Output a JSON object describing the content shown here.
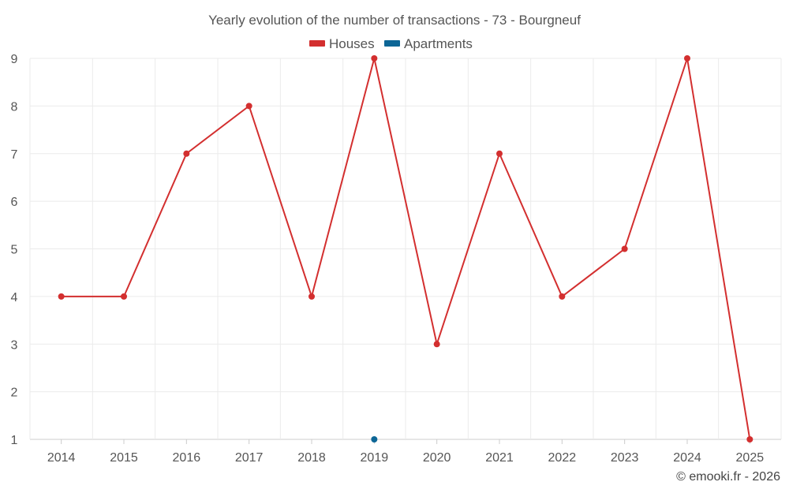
{
  "chart_data": {
    "type": "line",
    "title": "Yearly evolution of the number of transactions - 73 - Bourgneuf",
    "categories": [
      "2014",
      "2015",
      "2016",
      "2017",
      "2018",
      "2019",
      "2020",
      "2021",
      "2022",
      "2023",
      "2024",
      "2025"
    ],
    "series": [
      {
        "name": "Houses",
        "color": "#d32f2f",
        "values": [
          4,
          4,
          7,
          8,
          4,
          9,
          3,
          7,
          4,
          5,
          9,
          1
        ]
      },
      {
        "name": "Apartments",
        "color": "#0d6696",
        "values": [
          null,
          null,
          null,
          null,
          null,
          1,
          null,
          null,
          null,
          null,
          null,
          null
        ]
      }
    ],
    "ylim": [
      1,
      9
    ],
    "yticks": [
      1,
      2,
      3,
      4,
      5,
      6,
      7,
      8,
      9
    ],
    "grid": true,
    "legend_position": "top-center",
    "xlabel": "",
    "ylabel": ""
  },
  "credit": "© emooki.fr - 2026"
}
